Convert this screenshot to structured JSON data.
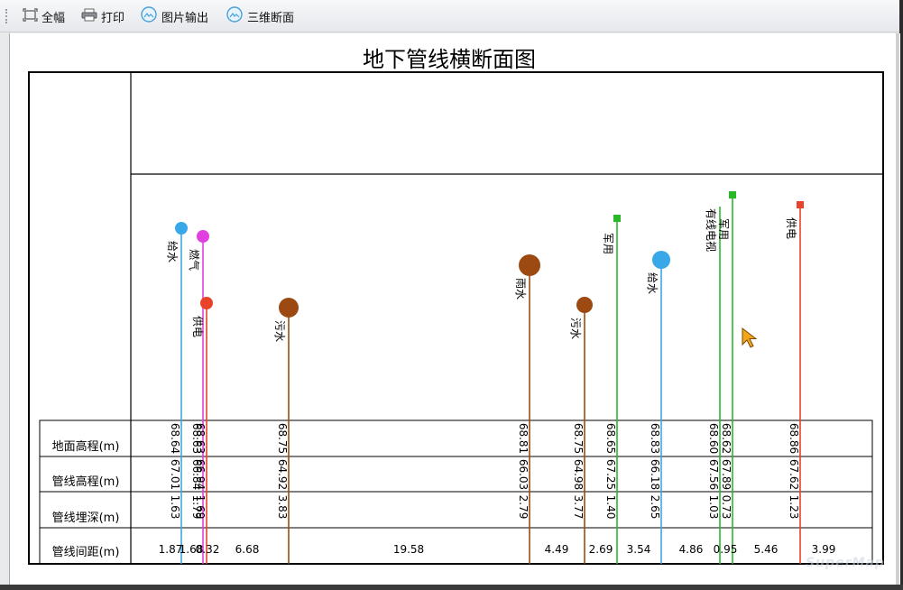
{
  "toolbar": {
    "full_extent": "全幅",
    "print": "打印",
    "export_image": "图片输出",
    "section_3d": "三维断面"
  },
  "chart": {
    "title": "地下管线横断面图",
    "row_labels": [
      "地面高程(m)",
      "管线高程(m)",
      "管线埋深(m)",
      "管线间距(m)"
    ],
    "pipes": [
      {
        "label": "给水",
        "color": "#38a8e8",
        "ground": "68.64",
        "elev": "67.01",
        "depth": "1.63"
      },
      {
        "label": "燃气",
        "color": "#e040e0",
        "ground": "68.63",
        "elev": "66.84",
        "depth": "1.79"
      },
      {
        "label": "供电",
        "color": "#e8422a",
        "ground": "68.63",
        "elev": "66.94",
        "depth": "1.69"
      },
      {
        "label": "污水",
        "color": "#9c4a12",
        "ground": "68.75",
        "elev": "64.92",
        "depth": "3.83"
      },
      {
        "label": "雨水",
        "color": "#9c4a12",
        "ground": "68.81",
        "elev": "66.03",
        "depth": "2.79"
      },
      {
        "label": "污水",
        "color": "#9c4a12",
        "ground": "68.75",
        "elev": "64.98",
        "depth": "3.77"
      },
      {
        "label": "军用",
        "color": "#28b828",
        "ground": "68.65",
        "elev": "67.25",
        "depth": "1.40"
      },
      {
        "label": "给水",
        "color": "#38a8e8",
        "ground": "68.83",
        "elev": "66.18",
        "depth": "2.65"
      },
      {
        "label": "有线电视",
        "color": "#28b828",
        "ground": "68.60",
        "elev": "67.56",
        "depth": "1.03"
      },
      {
        "label": "军用",
        "color": "#28b828",
        "ground": "68.62",
        "elev": "67.89",
        "depth": "0.73"
      },
      {
        "label": "供电",
        "color": "#e8422a",
        "ground": "68.86",
        "elev": "67.62",
        "depth": "1.23"
      }
    ],
    "spacing": [
      "1.87",
      "1.68",
      "0.32",
      "6.68",
      "19.58",
      "4.49",
      "2.69",
      "3.54",
      "4.86",
      "0.95",
      "5.46",
      "3.99"
    ]
  },
  "watermark": "SuperMap"
}
